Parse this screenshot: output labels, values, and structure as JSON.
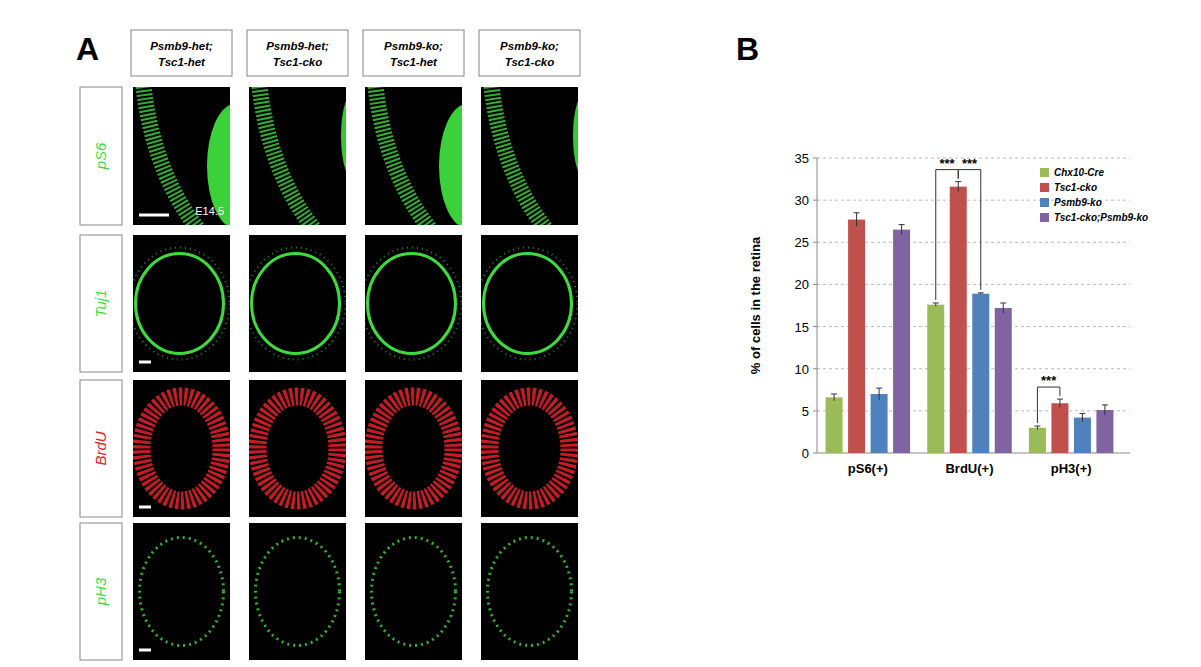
{
  "figure": {
    "panel_a": "A",
    "panel_b": "B",
    "columns": [
      [
        "Psmb9-het;",
        "Tsc1-het"
      ],
      [
        "Psmb9-het;",
        "Tsc1-cko"
      ],
      [
        "Psmb9-ko;",
        "Tsc1-het"
      ],
      [
        "Psmb9-ko;",
        "Tsc1-cko"
      ]
    ],
    "rows": [
      {
        "label": "pS6",
        "color": "#3ddc3d"
      },
      {
        "label": "Tuj1",
        "color": "#3ddc3d"
      },
      {
        "label": "BrdU",
        "color": "#e8202a"
      },
      {
        "label": "pH3",
        "color": "#3ddc3d"
      }
    ],
    "stage": "E14.5"
  },
  "chart_data": {
    "type": "bar",
    "y_label": "% of cells in the retina",
    "categories": [
      "pS6(+)",
      "BrdU(+)",
      "pH3(+)"
    ],
    "series": [
      {
        "name": "Chx10-Cre",
        "color": "#9bbb59",
        "values": [
          6.6,
          17.6,
          3.0
        ],
        "errors": [
          0.4,
          0.2,
          0.2
        ]
      },
      {
        "name": "Tsc1-cko",
        "color": "#c0504d",
        "values": [
          27.7,
          31.6,
          5.9
        ],
        "errors": [
          0.8,
          0.6,
          0.5
        ]
      },
      {
        "name": "Psmb9-ko",
        "color": "#4f81bd",
        "values": [
          7.0,
          18.9,
          4.2
        ],
        "errors": [
          0.7,
          0.1,
          0.5
        ]
      },
      {
        "name": "Tsc1-cko;Psmb9-ko",
        "color": "#8064a2",
        "values": [
          26.5,
          17.2,
          5.1
        ],
        "errors": [
          0.6,
          0.6,
          0.6
        ]
      }
    ],
    "ylim": [
      0,
      35
    ],
    "yticks": [
      0,
      5,
      10,
      15,
      20,
      25,
      30,
      35
    ],
    "grid": true,
    "legend": "upper right",
    "annotations": [
      {
        "text": "***",
        "category": 1,
        "from": 0,
        "to": 1
      },
      {
        "text": "***",
        "category": 1,
        "from": 1,
        "to": 2
      },
      {
        "text": "***",
        "category": 2,
        "from": 0,
        "to": 1
      }
    ]
  }
}
